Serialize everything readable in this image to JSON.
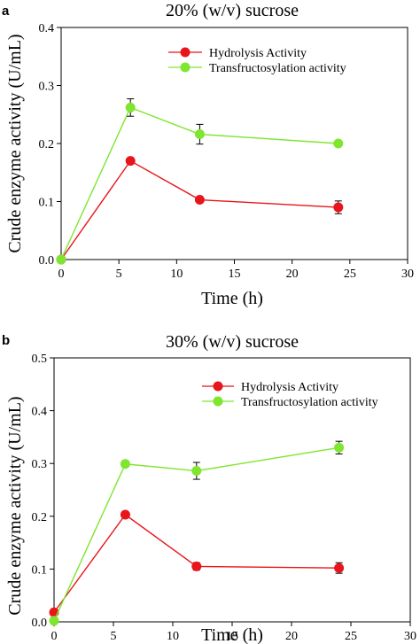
{
  "chart_data": [
    {
      "type": "line",
      "panel_label": "a",
      "title": "20% (w/v) sucrose",
      "xlabel": "Time (h)",
      "ylabel": "Crude enzyme activity (U/mL)",
      "xlim": [
        0,
        30
      ],
      "ylim": [
        0,
        0.4
      ],
      "xticks": [
        "0",
        "5",
        "10",
        "15",
        "20",
        "25",
        "30"
      ],
      "yticks": [
        "0.0",
        "0.1",
        "0.2",
        "0.3",
        "0.4"
      ],
      "legend_position": "top-right",
      "grid": false,
      "series": [
        {
          "name": "Hydrolysis Activity",
          "color": "#e8151b",
          "x": [
            0,
            6,
            12,
            24
          ],
          "y": [
            0.0,
            0.17,
            0.103,
            0.09
          ],
          "err": [
            0,
            0.003,
            0.004,
            0.011
          ]
        },
        {
          "name": "Transfructosylation activity",
          "color": "#7ee62e",
          "x": [
            0,
            6,
            12,
            24
          ],
          "y": [
            0.0,
            0.262,
            0.216,
            0.2
          ],
          "err": [
            0,
            0.015,
            0.017,
            0.003
          ]
        }
      ]
    },
    {
      "type": "line",
      "panel_label": "b",
      "title": "30% (w/v) sucrose",
      "xlabel": "Time (h)",
      "ylabel": "Crude enzyme activity (U/mL)",
      "xlim": [
        0,
        30
      ],
      "ylim": [
        0,
        0.5
      ],
      "xticks": [
        "0",
        "5",
        "10",
        "15",
        "20",
        "25",
        "30"
      ],
      "yticks": [
        "0.0",
        "0.1",
        "0.2",
        "0.3",
        "0.4",
        "0.5"
      ],
      "legend_position": "top-right",
      "grid": false,
      "series": [
        {
          "name": "Hydrolysis Activity",
          "color": "#e8151b",
          "x": [
            0,
            6,
            12,
            24
          ],
          "y": [
            0.018,
            0.203,
            0.105,
            0.102
          ],
          "err": [
            0,
            0.003,
            0.007,
            0.01
          ]
        },
        {
          "name": "Transfructosylation activity",
          "color": "#7ee62e",
          "x": [
            0,
            6,
            12,
            24
          ],
          "y": [
            0.002,
            0.299,
            0.286,
            0.33
          ],
          "err": [
            0,
            0.005,
            0.016,
            0.012
          ]
        }
      ]
    }
  ]
}
